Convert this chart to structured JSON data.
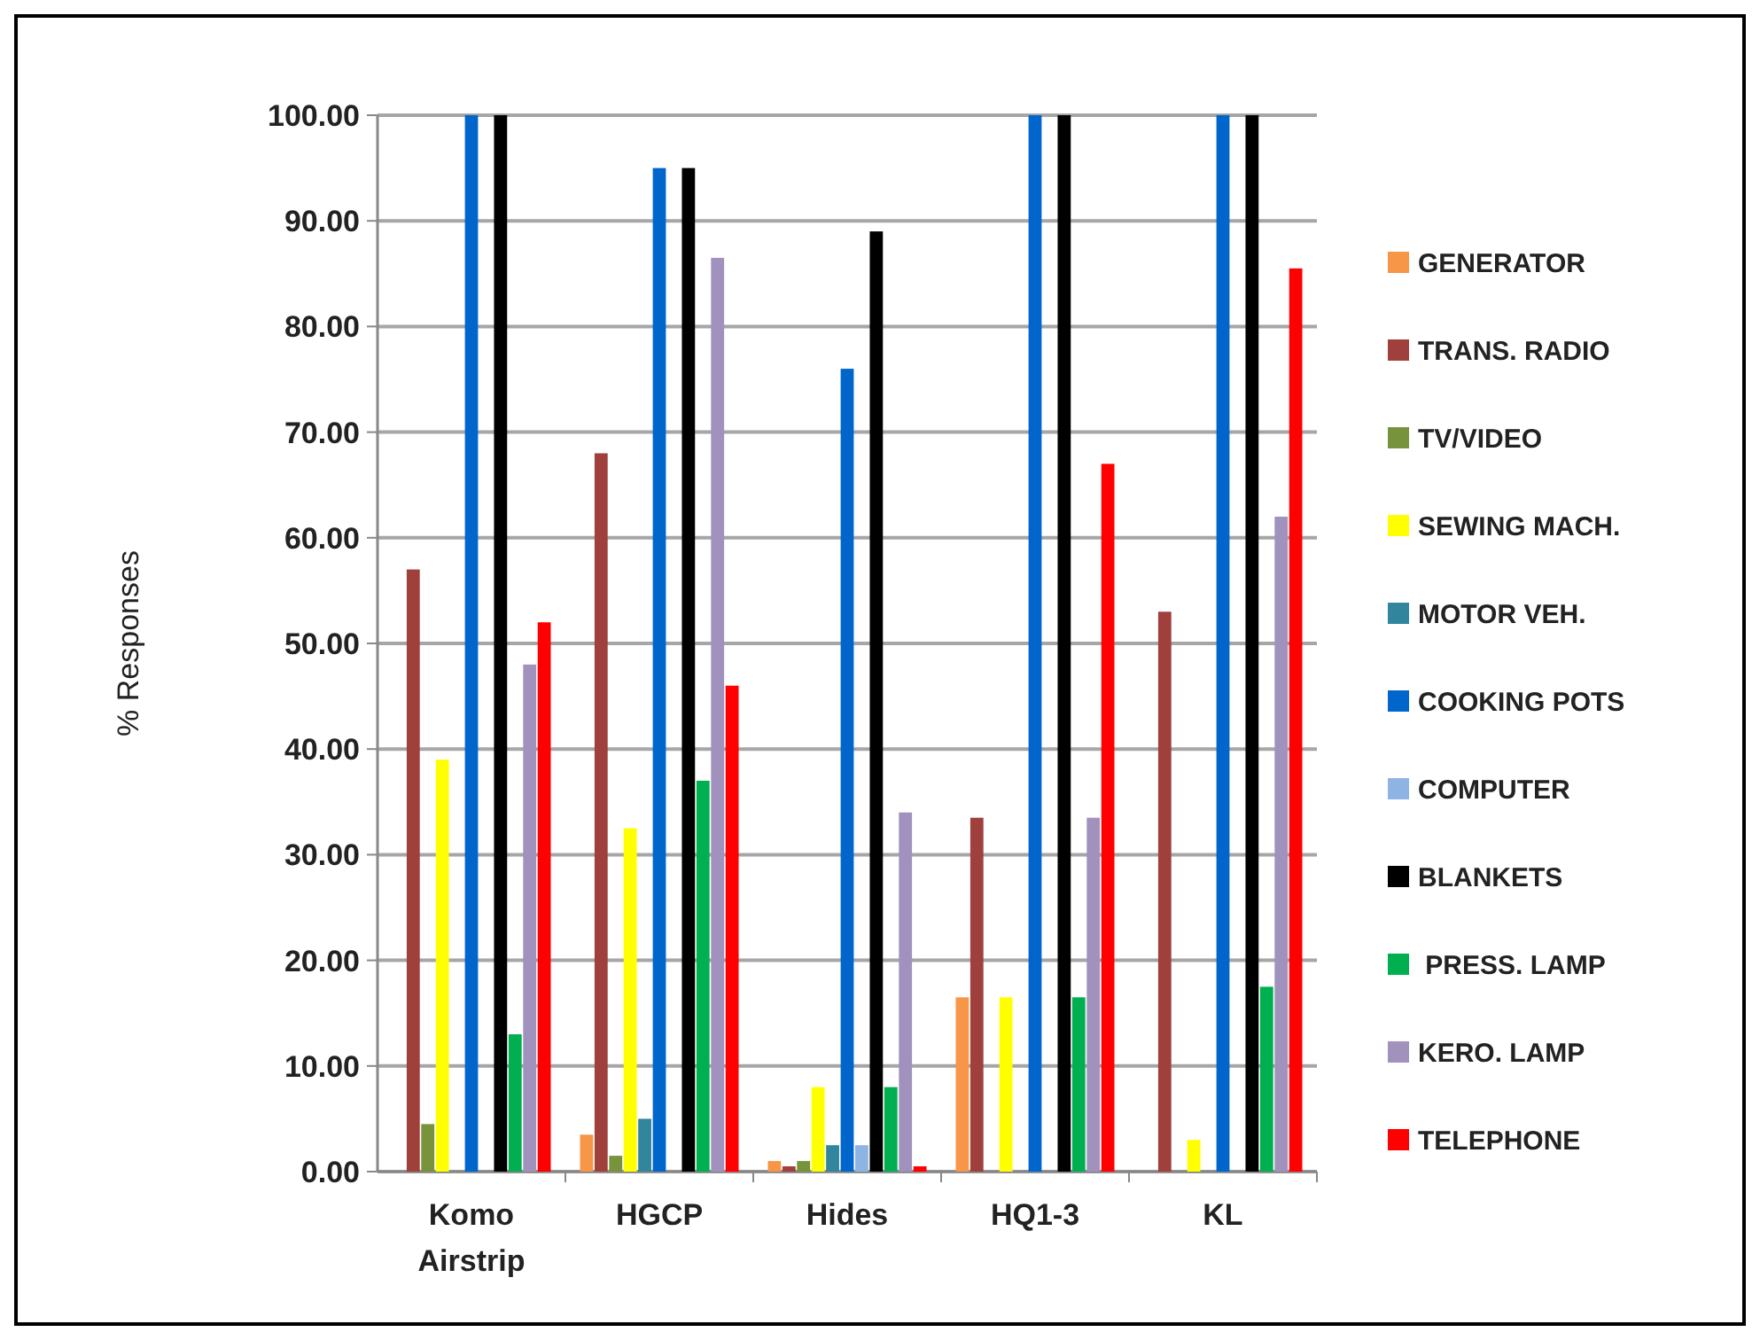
{
  "chart_data": {
    "type": "bar",
    "ylabel": "% Responses",
    "categories": [
      "Komo Airstrip",
      "HGCP",
      "Hides",
      "HQ1-3",
      "KL"
    ],
    "series": [
      {
        "name": "GENERATOR",
        "color": "#f79646",
        "values": [
          0,
          3.5,
          1,
          16.5,
          0
        ]
      },
      {
        "name": "TRANS. RADIO",
        "color": "#a0403d",
        "values": [
          57,
          68,
          0.5,
          33.5,
          53
        ]
      },
      {
        "name": "TV/VIDEO",
        "color": "#77933c",
        "values": [
          4.5,
          1.5,
          1,
          0,
          0
        ]
      },
      {
        "name": "SEWING MACH.",
        "color": "#ffff00",
        "values": [
          39,
          32.5,
          8,
          16.5,
          3
        ]
      },
      {
        "name": "MOTOR VEH.",
        "color": "#31859c",
        "values": [
          0,
          5,
          2.5,
          0,
          0
        ]
      },
      {
        "name": "COOKING POTS",
        "color": "#0066cc",
        "values": [
          100,
          95,
          76,
          100,
          100
        ]
      },
      {
        "name": "COMPUTER",
        "color": "#8eb4e3",
        "values": [
          0,
          0,
          2.5,
          0,
          0
        ]
      },
      {
        "name": "BLANKETS",
        "color": "#000000",
        "values": [
          100,
          95,
          89,
          100,
          100
        ]
      },
      {
        "name": " PRESS. LAMP",
        "color": "#00b050",
        "values": [
          13,
          37,
          8,
          16.5,
          17.5
        ]
      },
      {
        "name": "KERO. LAMP",
        "color": "#a192bd",
        "values": [
          48,
          86.5,
          34,
          33.5,
          62
        ]
      },
      {
        "name": "TELEPHONE",
        "color": "#ff0000",
        "values": [
          52,
          46,
          0.5,
          67,
          85.5
        ]
      }
    ],
    "ylim": [
      0,
      100
    ],
    "yticks": [
      {
        "value": 0,
        "label": "0.00"
      },
      {
        "value": 10,
        "label": "10.00"
      },
      {
        "value": 20,
        "label": "20.00"
      },
      {
        "value": 30,
        "label": "30.00"
      },
      {
        "value": 40,
        "label": "40.00"
      },
      {
        "value": 50,
        "label": "50.00"
      },
      {
        "value": 60,
        "label": "60.00"
      },
      {
        "value": 70,
        "label": "70.00"
      },
      {
        "value": 80,
        "label": "80.00"
      },
      {
        "value": 90,
        "label": "90.00"
      },
      {
        "value": 100,
        "label": "100.00"
      }
    ],
    "grid": "y",
    "legend": "right"
  }
}
